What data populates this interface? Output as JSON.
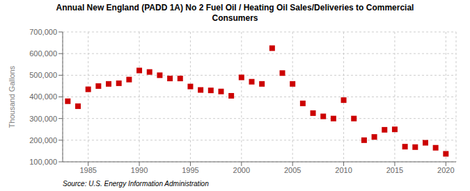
{
  "chart_data": {
    "type": "scatter",
    "title": "Annual New England (PADD 1A) No 2 Fuel Oil / Heating Oil Sales/Deliveries to Commercial\nConsumers",
    "ylabel": "Thousand Gallons",
    "annotations": [
      "Source: U.S. Energy Information Administration"
    ],
    "x": [
      1983,
      1984,
      1985,
      1986,
      1987,
      1988,
      1989,
      1990,
      1991,
      1992,
      1993,
      1994,
      1995,
      1996,
      1997,
      1998,
      1999,
      2000,
      2001,
      2002,
      2003,
      2004,
      2005,
      2006,
      2007,
      2008,
      2009,
      2010,
      2011,
      2012,
      2013,
      2014,
      2015,
      2016,
      2017,
      2018,
      2019,
      2020
    ],
    "values": [
      380000,
      357000,
      435000,
      450000,
      460000,
      463000,
      480000,
      522000,
      515000,
      500000,
      485000,
      485000,
      448000,
      432000,
      430000,
      425000,
      405000,
      490000,
      470000,
      460000,
      625000,
      510000,
      460000,
      370000,
      325000,
      310000,
      300000,
      385000,
      300000,
      200000,
      215000,
      248000,
      250000,
      170000,
      168000,
      188000,
      165000,
      137000
    ],
    "color": "#cc0000",
    "marker": "square",
    "xlim": [
      1982.5,
      2021
    ],
    "xticks": [
      1985,
      1990,
      1995,
      2000,
      2005,
      2010,
      2015,
      2020
    ],
    "ylim": [
      100000,
      700000
    ],
    "yticks": [
      {
        "value": 100000,
        "label": "100,000"
      },
      {
        "value": 200000,
        "label": "200,000"
      },
      {
        "value": 300000,
        "label": "300,000"
      },
      {
        "value": 400000,
        "label": "400,000"
      },
      {
        "value": 500000,
        "label": "500,000"
      },
      {
        "value": 600000,
        "label": "600,000"
      },
      {
        "value": 700000,
        "label": "700,000"
      }
    ],
    "grid": true
  }
}
